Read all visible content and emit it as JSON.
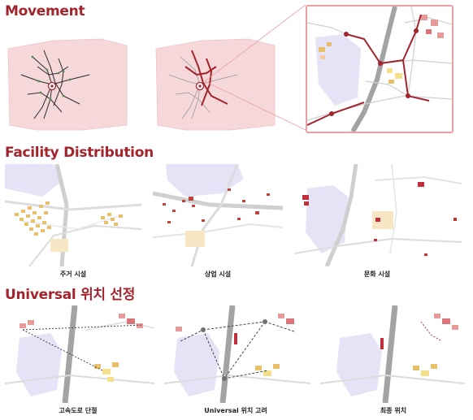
{
  "sections": {
    "movement": {
      "title": "Movement"
    },
    "facility": {
      "title": "Facility Distribution"
    },
    "universal": {
      "title": "Universal 위치 선정"
    }
  },
  "facility_captions": [
    "주거 시설",
    "상업 시설",
    "문화 시설"
  ],
  "universal_captions": [
    "고속도로 단절",
    "Universal 위치 고려",
    "최종 위치"
  ],
  "colors": {
    "accent": "#a3242c",
    "region_fill": "#f6d8da",
    "water": "#e6e3f7",
    "road": "#c9c9c9",
    "highway": "#a3a3a3",
    "residential": "#e8c06a",
    "commercial": "#c0443c",
    "culture": "#c0303c"
  }
}
